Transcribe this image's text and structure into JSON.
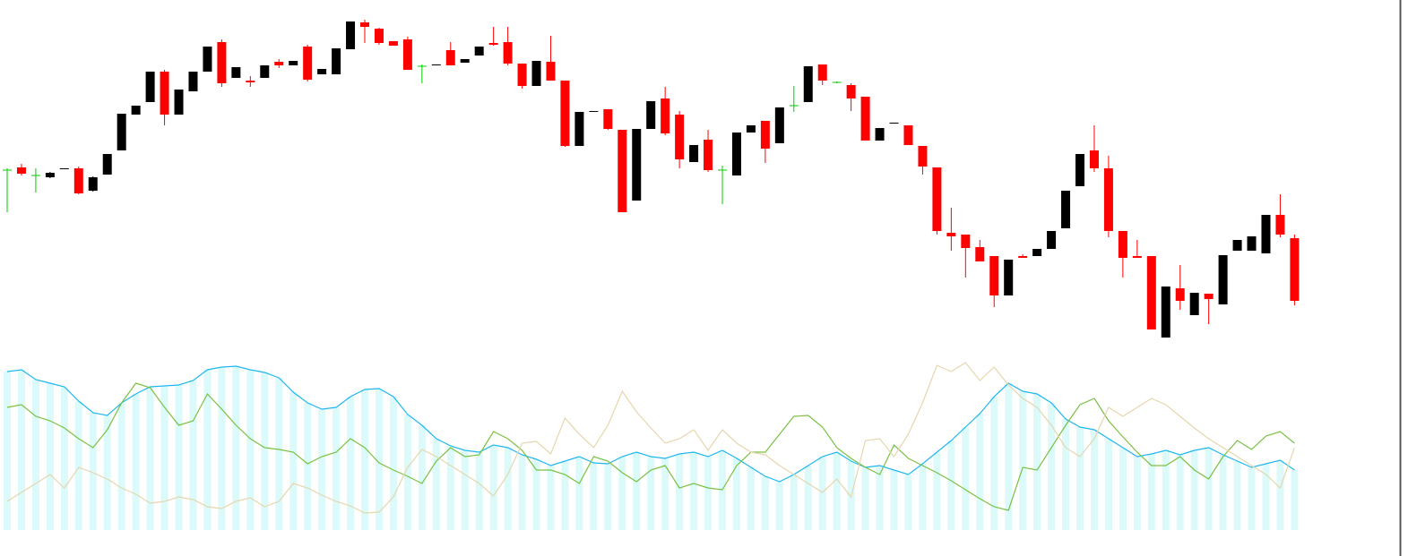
{
  "chart_data": [
    {
      "type": "candlestick",
      "ylim": [
        20,
        380
      ],
      "up_color": "#000000",
      "down_color": "#ff0000",
      "doji_color": "#00cc00",
      "open": [
        210,
        213,
        204,
        202,
        211,
        212,
        187,
        205,
        232,
        272,
        286,
        320,
        272,
        298,
        320,
        353,
        313,
        310,
        313,
        331,
        327,
        348,
        317,
        317,
        345,
        375,
        368,
        354,
        356,
        326,
        327,
        344,
        330,
        338,
        352,
        353,
        329,
        304,
        331,
        310,
        237,
        275,
        278,
        255,
        176,
        256,
        290,
        272,
        219,
        244,
        210,
        204,
        252,
        265,
        240,
        282,
        286,
        328,
        308,
        305,
        292,
        243,
        262,
        260,
        237,
        213,
        140,
        138,
        124,
        114,
        70,
        114,
        114,
        122,
        145,
        192,
        232,
        212,
        142,
        114,
        114,
        23,
        78,
        48,
        72,
        60,
        120,
        120,
        117,
        160,
        134
      ],
      "high": [
        212,
        217,
        212,
        208,
        212,
        214,
        203,
        228,
        273,
        282,
        320,
        322,
        300,
        320,
        348,
        356,
        325,
        315,
        327,
        334,
        332,
        350,
        323,
        346,
        376,
        378,
        369,
        354,
        359,
        328,
        328,
        353,
        334,
        348,
        370,
        370,
        329,
        332,
        360,
        310,
        275,
        276,
        278,
        255,
        256,
        287,
        303,
        276,
        238,
        255,
        215,
        252,
        260,
        265,
        280,
        304,
        326,
        328,
        309,
        307,
        292,
        257,
        263,
        260,
        237,
        213,
        168,
        138,
        132,
        114,
        110,
        116,
        122,
        142,
        187,
        228,
        260,
        226,
        142,
        132,
        114,
        80,
        104,
        73,
        72,
        115,
        132,
        136,
        160,
        183,
        138
      ],
      "low": [
        163,
        204,
        185,
        201,
        211,
        183,
        186,
        205,
        232,
        272,
        286,
        260,
        272,
        298,
        320,
        303,
        313,
        303,
        313,
        324,
        327,
        309,
        317,
        317,
        345,
        352,
        350,
        349,
        322,
        307,
        327,
        327,
        330,
        338,
        349,
        327,
        301,
        304,
        310,
        236,
        237,
        275,
        255,
        163,
        176,
        256,
        249,
        212,
        219,
        208,
        172,
        204,
        252,
        218,
        240,
        275,
        286,
        305,
        307,
        276,
        243,
        243,
        262,
        238,
        205,
        138,
        120,
        90,
        108,
        57,
        70,
        112,
        114,
        122,
        145,
        192,
        208,
        135,
        90,
        112,
        32,
        23,
        54,
        48,
        38,
        60,
        120,
        120,
        117,
        135,
        59
      ],
      "close": [
        210,
        206,
        204,
        207,
        212,
        184,
        202,
        228,
        273,
        282,
        320,
        272,
        300,
        320,
        348,
        307,
        325,
        308,
        327,
        327,
        332,
        311,
        323,
        346,
        376,
        370,
        352,
        349,
        322,
        326,
        328,
        327,
        334,
        348,
        350,
        329,
        304,
        332,
        310,
        237,
        275,
        276,
        256,
        163,
        256,
        287,
        251,
        222,
        238,
        210,
        210,
        252,
        260,
        234,
        280,
        282,
        326,
        310,
        308,
        290,
        243,
        257,
        263,
        238,
        214,
        142,
        136,
        123,
        108,
        70,
        110,
        112,
        122,
        142,
        187,
        228,
        212,
        142,
        112,
        112,
        32,
        80,
        64,
        73,
        66,
        115,
        132,
        136,
        160,
        138,
        64
      ]
    },
    {
      "type": "line",
      "ylim": [
        8,
        200
      ],
      "bar_series": 0,
      "bar_color": "#dcfafa",
      "series": [
        {
          "color": "#1fb6ef",
          "values": [
            185,
            187,
            176,
            172,
            168,
            152,
            139,
            136,
            150,
            160,
            168,
            169,
            170,
            175,
            187,
            190,
            191,
            187,
            184,
            178,
            162,
            150,
            143,
            145,
            157,
            165,
            166,
            157,
            137,
            125,
            110,
            102,
            97,
            95,
            103,
            100,
            92,
            87,
            80,
            85,
            90,
            83,
            82,
            90,
            95,
            90,
            88,
            93,
            95,
            90,
            97,
            88,
            78,
            68,
            62,
            70,
            80,
            90,
            95,
            85,
            78,
            80,
            75,
            70,
            82,
            95,
            108,
            123,
            138,
            157,
            172,
            163,
            160,
            150,
            132,
            123,
            120,
            110,
            100,
            90,
            93,
            97,
            92,
            97,
            100,
            92,
            85,
            78,
            82,
            86,
            75
          ]
        },
        {
          "color": "#7ac143",
          "values": [
            145,
            148,
            135,
            130,
            122,
            110,
            100,
            120,
            150,
            172,
            167,
            145,
            125,
            130,
            160,
            143,
            125,
            110,
            100,
            98,
            95,
            82,
            90,
            95,
            110,
            100,
            83,
            75,
            68,
            60,
            85,
            100,
            90,
            92,
            118,
            110,
            97,
            75,
            75,
            70,
            60,
            90,
            85,
            72,
            62,
            75,
            80,
            55,
            60,
            55,
            53,
            80,
            95,
            95,
            115,
            135,
            136,
            123,
            100,
            88,
            78,
            70,
            103,
            88,
            80,
            72,
            63,
            53,
            43,
            34,
            30,
            78,
            75,
            100,
            125,
            148,
            155,
            130,
            112,
            95,
            80,
            80,
            90,
            75,
            65,
            90,
            108,
            98,
            113,
            118,
            105
          ]
        },
        {
          "color": "#e6d6ae",
          "values": [
            40,
            50,
            60,
            70,
            55,
            78,
            72,
            65,
            55,
            48,
            38,
            40,
            45,
            42,
            34,
            32,
            40,
            44,
            34,
            40,
            60,
            55,
            47,
            40,
            35,
            27,
            28,
            45,
            78,
            98,
            90,
            80,
            70,
            60,
            46,
            70,
            105,
            107,
            93,
            133,
            115,
            100,
            125,
            163,
            140,
            122,
            105,
            110,
            120,
            97,
            120,
            105,
            95,
            92,
            80,
            70,
            60,
            50,
            65,
            45,
            108,
            110,
            90,
            115,
            150,
            192,
            185,
            195,
            175,
            190,
            170,
            155,
            145,
            125,
            100,
            90,
            110,
            145,
            135,
            145,
            155,
            148,
            135,
            122,
            110,
            100,
            90,
            80,
            70,
            55,
            100
          ]
        }
      ]
    }
  ]
}
